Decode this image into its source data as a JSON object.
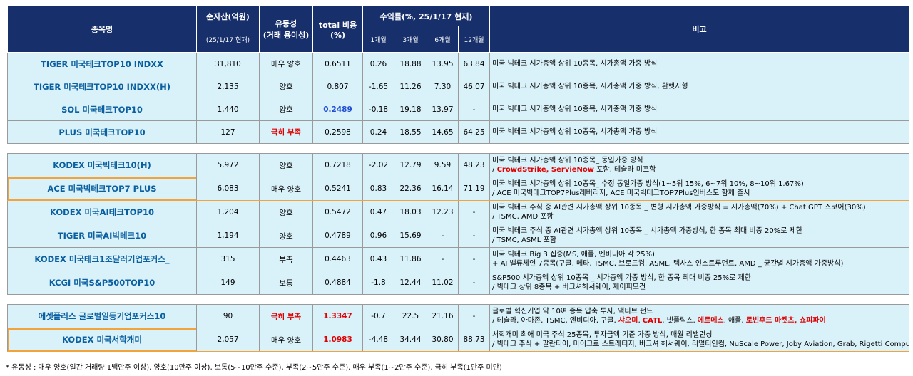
{
  "header": {
    "name": "종목명",
    "aum": "순자산(억원)",
    "aum_date": "(25/1/17 현재)",
    "liquidity": "유동성",
    "liquidity_sub": "(거래 용이성)",
    "cost": "total 비용",
    "cost_unit": "(%)",
    "returns": "수익률(%, 25/1/17 현재)",
    "r1": "1개월",
    "r3": "3개월",
    "r6": "6개월",
    "r12": "12개월",
    "note": "비고"
  },
  "group1": [
    {
      "name": "TIGER 미국테크TOP10 INDXX",
      "aum": "31,810",
      "liq": "매우 양호",
      "cost": "0.6511",
      "r1": "0.26",
      "r3": "18.88",
      "r6": "13.95",
      "r12": "63.84",
      "note1": "미국 빅테크 시가총액 상위 10종목, 시가총액 가중 방식"
    },
    {
      "name": "TIGER 미국테크TOP10 INDXX(H)",
      "aum": "2,135",
      "liq": "양호",
      "cost": "0.807",
      "r1": "-1.65",
      "r3": "11.26",
      "r6": "7.30",
      "r12": "46.07",
      "note1": "미국 빅테크 시가총액 상위 10종목, 시가총액 가중 방식, 환헷지형"
    },
    {
      "name": "SOL 미국테크TOP10",
      "aum": "1,440",
      "liq": "양호",
      "cost": "0.2489",
      "r1": "-0.18",
      "r3": "19.18",
      "r6": "13.97",
      "r12": "-",
      "note1": "미국 빅테크 시가총액 상위 10종목, 시가총액 가중 방식"
    },
    {
      "name": "PLUS 미국테크TOP10",
      "aum": "127",
      "liq": "극히 부족",
      "cost": "0.2598",
      "r1": "0.24",
      "r3": "18.55",
      "r6": "14.65",
      "r12": "64.25",
      "note1": "미국 빅테크 시가총액 상위 10종목, 시가총액 가중 방식"
    }
  ],
  "group2": [
    {
      "name": "KODEX 미국빅테크10(H)",
      "aum": "5,972",
      "liq": "양호",
      "cost": "0.7218",
      "r1": "-2.02",
      "r3": "12.79",
      "r6": "9.59",
      "r12": "48.23",
      "note1": "미국 빅테크 시가총액 상위 10종목_ 동일가중 방식",
      "note2_pre": "/ ",
      "note2_red": "CrowdStrike, ServieNow",
      "note2_post": " 포함, 테슬라 미포함"
    },
    {
      "name": "ACE 미국빅테크TOP7 PLUS",
      "aum": "6,083",
      "liq": "매우 양호",
      "cost": "0.5241",
      "r1": "0.83",
      "r3": "22.36",
      "r6": "16.14",
      "r12": "71.19",
      "note1": "미국 빅테크 시가총액 상위 10종목_ 수정 동일가중 방식(1~5위 15%, 6~7위 10%, 8~10위 1.67%)",
      "note2": "/ ACE 미국빅테크TOP7Plus레버리지, ACE 미국빅테크TOP7Plus인버스도 함께 출시"
    },
    {
      "name": "KODEX 미국AI테크TOP10",
      "aum": "1,204",
      "liq": "양호",
      "cost": "0.5472",
      "r1": "0.47",
      "r3": "18.03",
      "r6": "12.23",
      "r12": "-",
      "note1": "미국 빅테크 주식 중 AI관련 시가총액 상위 10종목 _ 변형 시가총액 가중방식 = 시가총액(70%) + Chat GPT 스코어(30%)",
      "note2": "/ TSMC, AMD 포함"
    },
    {
      "name": "TIGER 미국AI빅테크10",
      "aum": "1,194",
      "liq": "양호",
      "cost": "0.4789",
      "r1": "0.96",
      "r3": "15.69",
      "r6": "-",
      "r12": "-",
      "note1": "미국 빅테크 주식 중 AI관련 시가총액 상위 10종목 _ 시가총액 가중방식, 한 종목 최대 비중 20%로 제한",
      "note2": "/ TSMC, ASML 포함"
    },
    {
      "name": "KODEX 미국테크1조달러기업포커스_",
      "aum": "315",
      "liq": "부족",
      "cost": "0.4463",
      "r1": "0.43",
      "r3": "11.86",
      "r6": "-",
      "r12": "-",
      "note1": "미국 빅테크 Big 3 집중(MS, 애플, 엔비디아 각 25%)",
      "note2": "+ AI 밸류체인 7종목(구글, 메타, TSMC, 브로드컴, ASML, 텍사스 인스트루먼트, AMD _ 균간별 시가총액 가중방식)"
    },
    {
      "name": "KCGI 미국S&P500TOP10",
      "aum": "149",
      "liq": "보통",
      "cost": "0.4884",
      "r1": "-1.8",
      "r3": "12.44",
      "r6": "11.02",
      "r12": "-",
      "note1": "S&P500 시가총액 상위 10종목 _ 시가총액 가중 방식, 한 종목 최대 비중 25%로 제한",
      "note2": "/ 빅테크 상위 8종목 + 버크셔해서웨이, 제이피모건"
    }
  ],
  "group3": [
    {
      "name": "에셋플러스 글로벌일등기업포커스10",
      "aum": "90",
      "liq": "극히 부족",
      "cost": "1.3347",
      "r1": "-0.7",
      "r3": "22.5",
      "r6": "21.16",
      "r12": "-",
      "note1": "글로벌 혁신기업 약 10여 종목 압축 투자, 액티브 펀드",
      "n2a": "/ 테슬라, 아마존, TSMC, 엔비디아, 구글, ",
      "n2b": "CATL",
      "n2c": ", 넷플릭스, ",
      "n2d": "에르메스",
      "n2e": ", 애플, ",
      "n2f": "로빈후드 마켓츠, 쇼피파이",
      "n2s": "샤오미",
      "n2pre": "/ 테슬라, 아마존, TSMC, 엔비디아, 구글, "
    },
    {
      "name": "KODEX 미국서학개미",
      "aum": "2,057",
      "liq": "매우 양호",
      "cost": "1.0983",
      "r1": "-4.48",
      "r3": "34.44",
      "r6": "30.80",
      "r12": "88.73",
      "note1": "서학개미 최애 미국 주식 25종목, 투자금액 기준 가중 방식, 매월 리밸런싱",
      "note2": "/ 빅테크 주식 + 팔란티어, 마이크로 스트레티지, 버크셔 해서웨이, 리얼티인컴, NuScale Power, Joby Aviation, Grab, Rigetti Computing"
    }
  ],
  "footnote": "* 유동성 : 매우 양호(일간 거래량 1백만주 이상), 양호(10만주 이상), 보통(5~10만주 수준), 부족(2~5만주 수준), 매우 부족(1~2만주 수준), 극히 부족(1만주 미만)",
  "colors": {
    "header_bg": "#17306b",
    "row_bg": "#d9f1f9",
    "name_text": "#0a5fa0",
    "highlight_red": "#e00000",
    "highlight_blue": "#1f4fd6",
    "orange_border": "#f2a33a"
  }
}
